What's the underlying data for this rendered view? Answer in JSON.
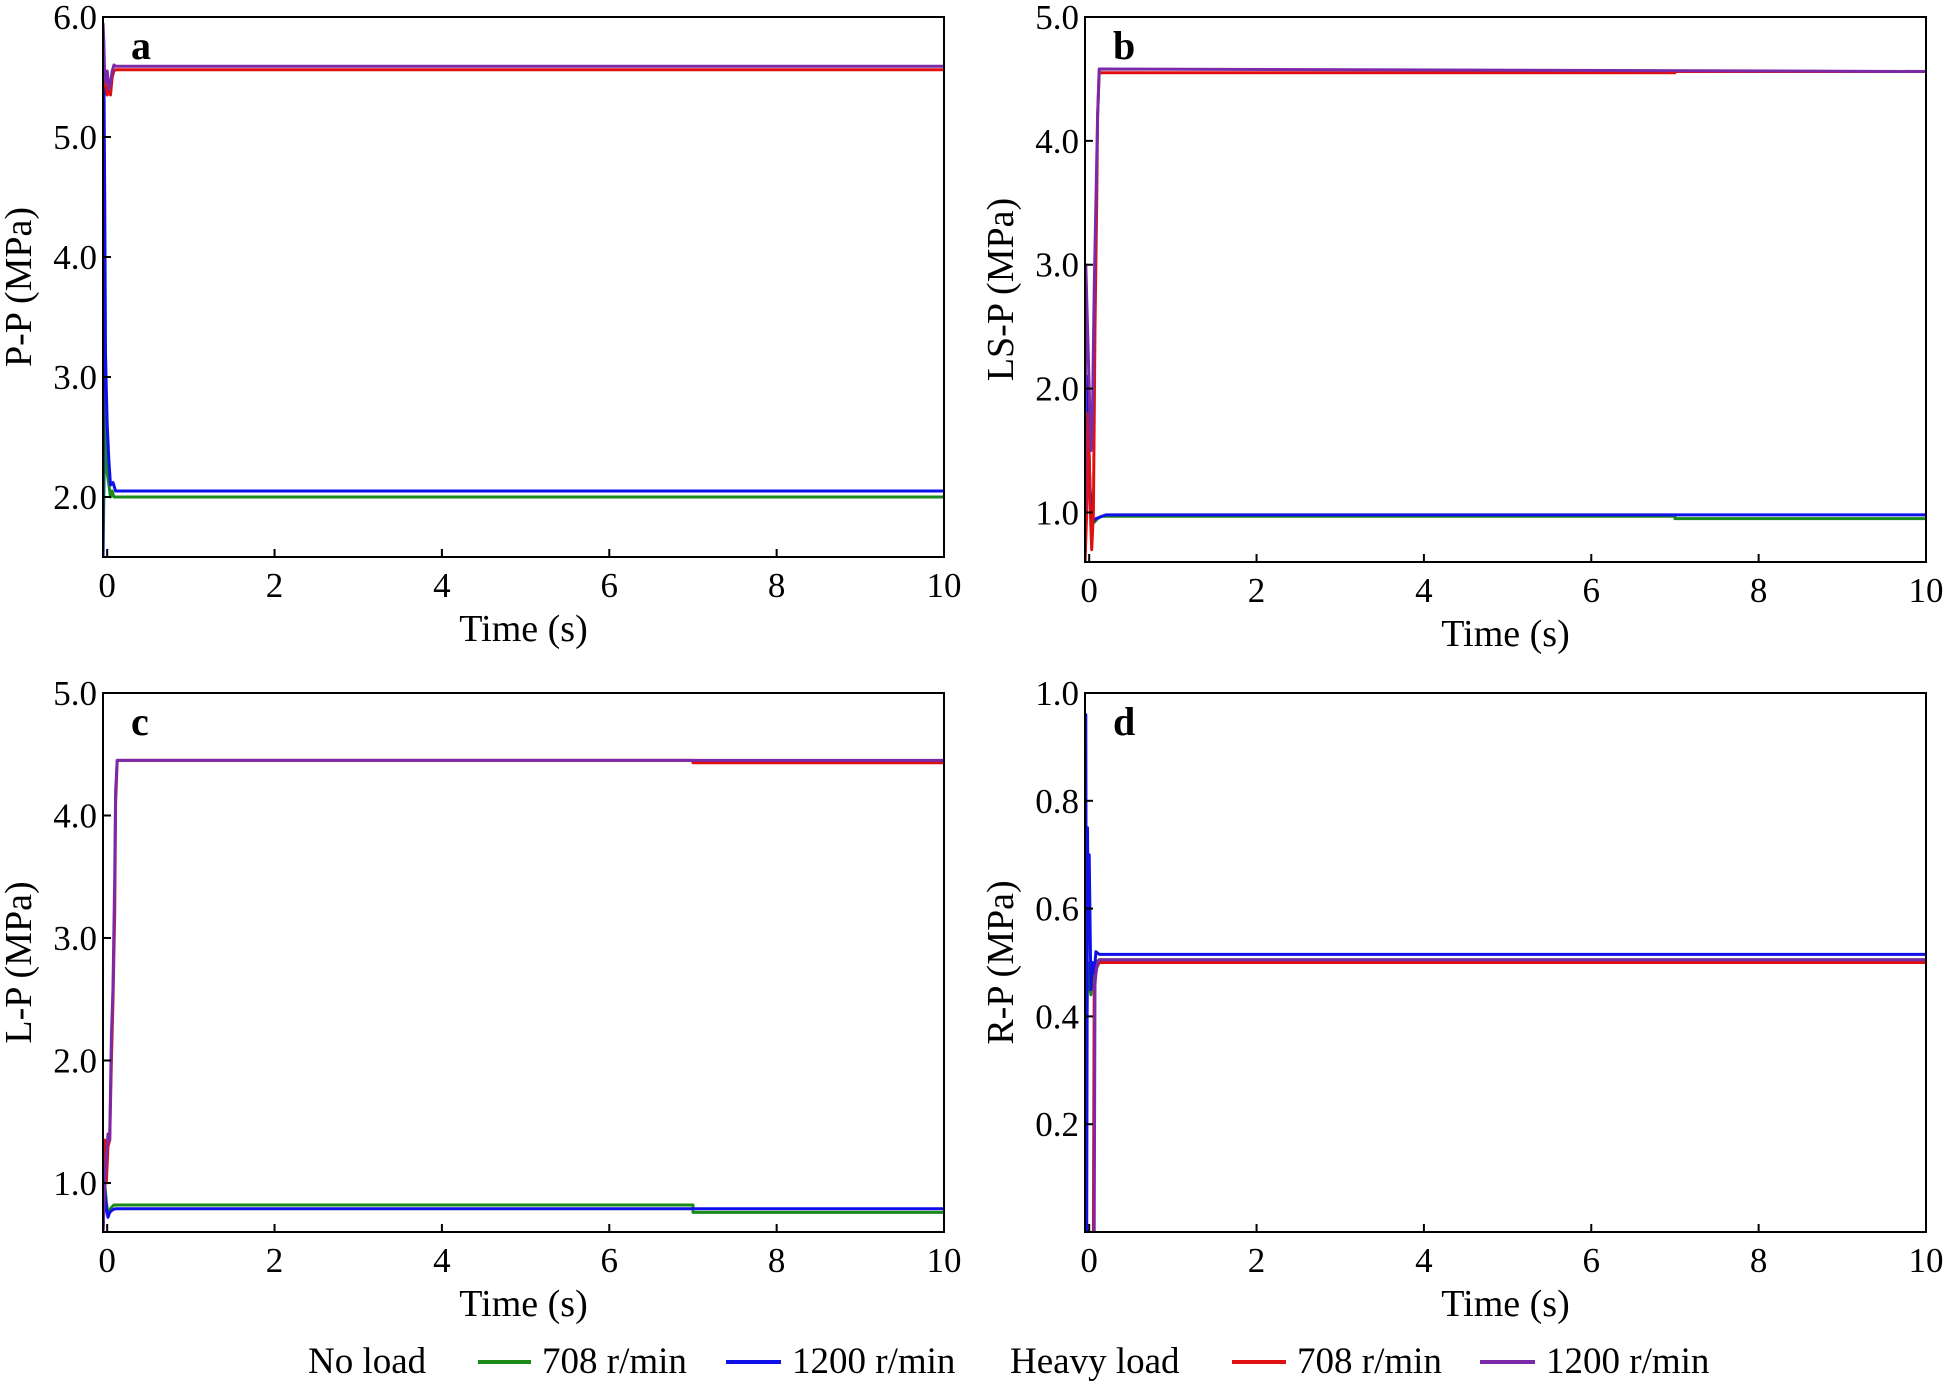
{
  "legend": {
    "groups": [
      {
        "label": "No load",
        "entries": [
          {
            "label": "708 r/min",
            "color": "#1a8a1a"
          },
          {
            "label": "1200 r/min",
            "color": "#1010e8"
          }
        ]
      },
      {
        "label": "Heavy load",
        "entries": [
          {
            "label": "708 r/min",
            "color": "#e01010"
          },
          {
            "label": "1200 r/min",
            "color": "#7a2aa8"
          }
        ]
      }
    ]
  },
  "chart_data": [
    {
      "type": "line",
      "id": "a",
      "panel_label": "a",
      "xlabel": "Time (s)",
      "ylabel": "P-P (MPa)",
      "xlim": [
        -0.05,
        10
      ],
      "ylim": [
        1.5,
        6.0
      ],
      "xticks": [
        0,
        2,
        4,
        6,
        8,
        10
      ],
      "xtick_labels": [
        "0",
        "2",
        "4",
        "6",
        "8",
        "10"
      ],
      "yticks": [
        2.0,
        3.0,
        4.0,
        5.0,
        6.0
      ],
      "ytick_labels": [
        "2.0",
        "3.0",
        "4.0",
        "5.0",
        "6.0"
      ],
      "series": [
        {
          "name": "No load 708 r/min",
          "color": "#1a8a1a",
          "x": [
            -0.05,
            -0.03,
            -0.02,
            -0.01,
            0.0,
            0.02,
            0.04,
            0.06,
            0.08,
            10
          ],
          "y": [
            1.5,
            2.5,
            2.9,
            2.4,
            2.2,
            2.1,
            2.0,
            2.05,
            2.0,
            2.0
          ]
        },
        {
          "name": "No load 1200 r/min",
          "color": "#1010e8",
          "x": [
            -0.05,
            -0.04,
            -0.03,
            -0.02,
            -0.01,
            0.0,
            0.02,
            0.04,
            0.07,
            0.1,
            10
          ],
          "y": [
            1.5,
            5.7,
            4.5,
            3.2,
            2.9,
            2.6,
            2.3,
            2.1,
            2.12,
            2.05,
            2.05
          ]
        },
        {
          "name": "Heavy load 708 r/min",
          "color": "#e01010",
          "x": [
            -0.05,
            -0.04,
            -0.03,
            -0.01,
            0.0,
            0.02,
            0.04,
            0.06,
            0.08,
            0.1,
            10
          ],
          "y": [
            5.9,
            5.5,
            5.45,
            5.4,
            5.35,
            5.45,
            5.35,
            5.5,
            5.55,
            5.56,
            5.56
          ]
        },
        {
          "name": "Heavy load 1200 r/min",
          "color": "#7a2aa8",
          "x": [
            -0.05,
            -0.04,
            -0.03,
            -0.01,
            0.0,
            0.02,
            0.04,
            0.06,
            0.08,
            0.1,
            10
          ],
          "y": [
            5.95,
            5.8,
            5.5,
            5.45,
            5.55,
            5.4,
            5.45,
            5.55,
            5.6,
            5.59,
            5.59
          ]
        }
      ]
    },
    {
      "type": "line",
      "id": "b",
      "panel_label": "b",
      "xlabel": "Time (s)",
      "ylabel": "LS-P (MPa)",
      "xlim": [
        -0.05,
        10
      ],
      "ylim": [
        0.6,
        5.0
      ],
      "xticks": [
        0,
        2,
        4,
        6,
        8,
        10
      ],
      "xtick_labels": [
        "0",
        "2",
        "4",
        "6",
        "8",
        "10"
      ],
      "yticks": [
        1.0,
        2.0,
        3.0,
        4.0,
        5.0
      ],
      "ytick_labels": [
        "1.0",
        "2.0",
        "3.0",
        "4.0",
        "5.0"
      ],
      "series": [
        {
          "name": "No load 708 r/min",
          "color": "#1a8a1a",
          "x": [
            -0.05,
            -0.02,
            0.0,
            0.02,
            0.04,
            0.06,
            0.1,
            0.15,
            7.0,
            7.0,
            10
          ],
          "y": [
            0.6,
            2.0,
            1.4,
            1.0,
            0.95,
            0.92,
            0.95,
            0.97,
            0.97,
            0.95,
            0.95
          ]
        },
        {
          "name": "No load 1200 r/min",
          "color": "#1010e8",
          "x": [
            -0.05,
            -0.03,
            -0.01,
            0.01,
            0.03,
            0.05,
            0.08,
            0.12,
            0.2,
            10
          ],
          "y": [
            0.6,
            2.1,
            1.7,
            1.2,
            1.0,
            0.93,
            0.95,
            0.96,
            0.98,
            0.98
          ]
        },
        {
          "name": "Heavy load 708 r/min",
          "color": "#e01010",
          "x": [
            -0.05,
            -0.03,
            -0.01,
            0.01,
            0.03,
            0.05,
            0.07,
            0.09,
            0.1,
            0.12,
            7.0,
            7.0,
            10
          ],
          "y": [
            0.6,
            1.0,
            1.8,
            1.1,
            0.7,
            1.0,
            2.5,
            3.5,
            4.2,
            4.55,
            4.55,
            4.56,
            4.56
          ]
        },
        {
          "name": "Heavy load 1200 r/min",
          "color": "#7a2aa8",
          "x": [
            -0.05,
            -0.04,
            -0.02,
            0.0,
            0.02,
            0.04,
            0.06,
            0.08,
            0.1,
            0.12,
            10
          ],
          "y": [
            1.0,
            3.0,
            2.5,
            2.0,
            1.5,
            1.8,
            2.8,
            3.5,
            4.2,
            4.58,
            4.56
          ]
        }
      ]
    },
    {
      "type": "line",
      "id": "c",
      "panel_label": "c",
      "xlabel": "Time (s)",
      "ylabel": "L-P (MPa)",
      "xlim": [
        -0.05,
        10
      ],
      "ylim": [
        0.6,
        5.0
      ],
      "xticks": [
        0,
        2,
        4,
        6,
        8,
        10
      ],
      "xtick_labels": [
        "0",
        "2",
        "4",
        "6",
        "8",
        "10"
      ],
      "yticks": [
        1.0,
        2.0,
        3.0,
        4.0,
        5.0
      ],
      "ytick_labels": [
        "1.0",
        "2.0",
        "3.0",
        "4.0",
        "5.0"
      ],
      "series": [
        {
          "name": "No load 708 r/min",
          "color": "#1a8a1a",
          "x": [
            -0.05,
            -0.03,
            -0.01,
            0.01,
            0.03,
            0.05,
            0.08,
            0.12,
            7.0,
            7.0,
            10
          ],
          "y": [
            0.6,
            1.0,
            0.85,
            0.75,
            0.78,
            0.8,
            0.82,
            0.82,
            0.82,
            0.76,
            0.76
          ]
        },
        {
          "name": "No load 1200 r/min",
          "color": "#1010e8",
          "x": [
            -0.05,
            -0.03,
            -0.01,
            0.01,
            0.03,
            0.06,
            0.1,
            10
          ],
          "y": [
            0.6,
            0.95,
            0.8,
            0.72,
            0.76,
            0.78,
            0.79,
            0.79
          ]
        },
        {
          "name": "Heavy load 708 r/min",
          "color": "#e01010",
          "x": [
            -0.05,
            -0.03,
            -0.01,
            0.01,
            0.03,
            0.05,
            0.07,
            0.09,
            0.1,
            0.12,
            7.0,
            7.0,
            10
          ],
          "y": [
            0.6,
            1.35,
            1.0,
            1.3,
            1.35,
            2.0,
            2.5,
            3.2,
            4.1,
            4.45,
            4.45,
            4.43,
            4.43
          ]
        },
        {
          "name": "Heavy load 1200 r/min",
          "color": "#7a2aa8",
          "x": [
            -0.05,
            -0.03,
            -0.01,
            0.01,
            0.03,
            0.05,
            0.07,
            0.09,
            0.1,
            0.12,
            10
          ],
          "y": [
            0.6,
            1.0,
            1.2,
            1.4,
            1.35,
            2.2,
            2.6,
            3.5,
            4.2,
            4.45,
            4.45
          ]
        }
      ]
    },
    {
      "type": "line",
      "id": "d",
      "panel_label": "d",
      "xlabel": "Time (s)",
      "ylabel": "R-P (MPa)",
      "xlim": [
        -0.05,
        10
      ],
      "ylim": [
        0.0,
        1.0
      ],
      "xticks": [
        0,
        2,
        4,
        6,
        8,
        10
      ],
      "xtick_labels": [
        "0",
        "2",
        "4",
        "6",
        "8",
        "10"
      ],
      "yticks": [
        0.2,
        0.4,
        0.6,
        0.8,
        1.0
      ],
      "ytick_labels": [
        "0.2",
        "0.4",
        "0.6",
        "0.8",
        "1.0"
      ],
      "series": [
        {
          "name": "No load 708 r/min",
          "color": "#1a8a1a",
          "x": [
            -0.05,
            -0.02,
            0.0,
            0.02,
            0.04,
            0.06,
            0.08,
            0.12,
            10
          ],
          "y": [
            0.0,
            0.5,
            0.46,
            0.44,
            0.48,
            0.47,
            0.5,
            0.505,
            0.505
          ]
        },
        {
          "name": "No load 1200 r/min",
          "color": "#1010e8",
          "x": [
            -0.05,
            -0.04,
            -0.03,
            -0.02,
            -0.01,
            0.0,
            0.02,
            0.04,
            0.06,
            0.08,
            0.12,
            10
          ],
          "y": [
            0.0,
            0.96,
            0.0,
            0.75,
            0.55,
            0.7,
            0.45,
            0.5,
            0.48,
            0.52,
            0.515,
            0.515
          ]
        },
        {
          "name": "Heavy load 708 r/min",
          "color": "#e01010",
          "x": [
            0.05,
            0.06,
            0.07,
            0.09,
            0.12,
            10
          ],
          "y": [
            0.0,
            0.45,
            0.47,
            0.49,
            0.5,
            0.5
          ]
        },
        {
          "name": "Heavy load 1200 r/min",
          "color": "#7a2aa8",
          "x": [
            0.06,
            0.07,
            0.08,
            0.1,
            0.12,
            10
          ],
          "y": [
            0.0,
            0.46,
            0.48,
            0.5,
            0.505,
            0.505
          ]
        }
      ]
    }
  ]
}
